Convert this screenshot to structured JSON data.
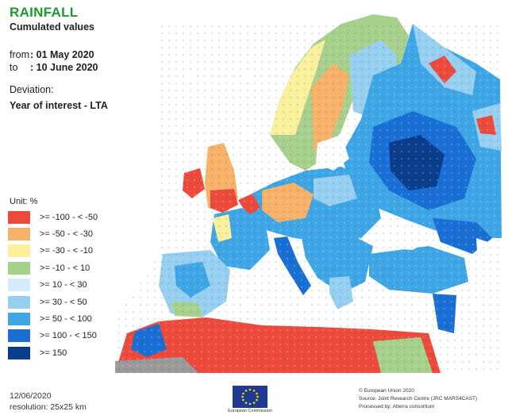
{
  "header": {
    "title": "RAINFALL",
    "subtitle": "Cumulated values",
    "from_label": "from",
    "from_value": ": 01 May 2020",
    "to_label": "to",
    "to_value": ": 10 June 2020",
    "deviation_label": "Deviation:",
    "deviation_value": "Year of interest - LTA"
  },
  "legend": {
    "unit": "Unit: %",
    "items": [
      {
        "label": ">= -100 - < -50",
        "color": "#ee4a3c"
      },
      {
        "label": ">= -50 - < -30",
        "color": "#f8b168"
      },
      {
        "label": ">= -30 - < -10",
        "color": "#fbf19c"
      },
      {
        "label": ">= -10 - < 10",
        "color": "#a8d08d"
      },
      {
        "label": ">= 10 - < 30",
        "color": "#d6ecfa"
      },
      {
        "label": ">= 30 - < 50",
        "color": "#97cff0"
      },
      {
        "label": ">= 50 - < 100",
        "color": "#3fa6e6"
      },
      {
        "label": ">= 100 - < 150",
        "color": "#1a6fd4"
      },
      {
        "label": ">= 150",
        "color": "#0a3d8c"
      }
    ]
  },
  "footer": {
    "date": "12/06/2020",
    "resolution": "resolution: 25x25 km",
    "logo_text": "European Commission",
    "credit_1": "© European Union 2020",
    "credit_2": "Source: Joint Research Centre (JRC MARS4CAST)",
    "credit_3": "Processed by: Alterra consortium"
  },
  "map": {
    "sea_color": "#ffffff",
    "water_color": "#ffffff",
    "north_africa_gray": "#9a9a9a"
  }
}
